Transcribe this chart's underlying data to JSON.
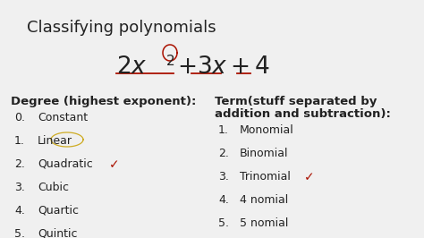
{
  "title": "Classifying polynomials",
  "background_color": "#f0f0f0",
  "degree_header": "Degree (highest exponent):",
  "degree_items": [
    [
      "0.",
      "Constant"
    ],
    [
      "1.",
      "Linear"
    ],
    [
      "2.",
      "Quadratic"
    ],
    [
      "3.",
      "Cubic"
    ],
    [
      "4.",
      "Quartic"
    ],
    [
      "5.",
      "Quintic"
    ]
  ],
  "term_header1": "Term(stuff separated by",
  "term_header2": "addition and subtraction):",
  "term_items": [
    [
      "1.",
      "Monomial"
    ],
    [
      "2.",
      "Binomial"
    ],
    [
      "3.",
      "Trinomial"
    ],
    [
      "4.",
      "4 nomial"
    ],
    [
      "5.",
      "5 nomial"
    ]
  ],
  "checkmark_color": "#aa1100",
  "underline_color": "#aa1100",
  "circle_color": "#aa1100",
  "yellow_color": "#c8a000",
  "text_color": "#222222",
  "font_size_title": 13,
  "font_size_eq": 16,
  "font_size_exp": 10,
  "font_size_body": 9,
  "font_size_header": 9.5
}
